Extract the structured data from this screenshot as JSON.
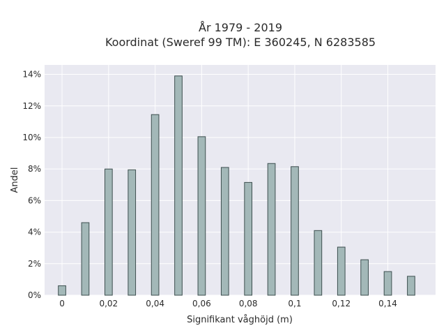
{
  "chart_data": {
    "type": "bar",
    "title_line1": "År 1979 - 2019",
    "title_line2": "Koordinat (Sweref 99 TM): E 360245, N 6283585",
    "xlabel": "Signifikant våghöjd (m)",
    "ylabel": "Andel",
    "x": [
      0,
      0.01,
      0.02,
      0.03,
      0.04,
      0.05,
      0.06,
      0.07,
      0.08,
      0.09,
      0.1,
      0.11,
      0.12,
      0.13,
      0.14,
      0.15
    ],
    "values": [
      0.6,
      4.6,
      8.0,
      7.95,
      11.45,
      13.9,
      10.05,
      8.1,
      7.15,
      8.35,
      8.15,
      4.1,
      3.05,
      2.25,
      1.5,
      1.2
    ],
    "xlim": [
      -0.0075,
      0.1605
    ],
    "ylim": [
      0,
      14.6
    ],
    "x_ticks": [
      0,
      0.02,
      0.04,
      0.06,
      0.08,
      0.1,
      0.12,
      0.14
    ],
    "x_tick_labels": [
      "0",
      "0,02",
      "0,04",
      "0,06",
      "0,08",
      "0,1",
      "0,12",
      "0,14"
    ],
    "y_ticks": [
      0,
      2,
      4,
      6,
      8,
      10,
      12,
      14
    ],
    "y_tick_labels": [
      "0%",
      "2%",
      "4%",
      "6%",
      "8%",
      "10%",
      "12%",
      "14%"
    ],
    "grid": true,
    "colors": {
      "bar_fill": "#a3b8b8",
      "bar_stroke": "#3d4f4f",
      "plot_bg": "#e9e9f1"
    }
  }
}
